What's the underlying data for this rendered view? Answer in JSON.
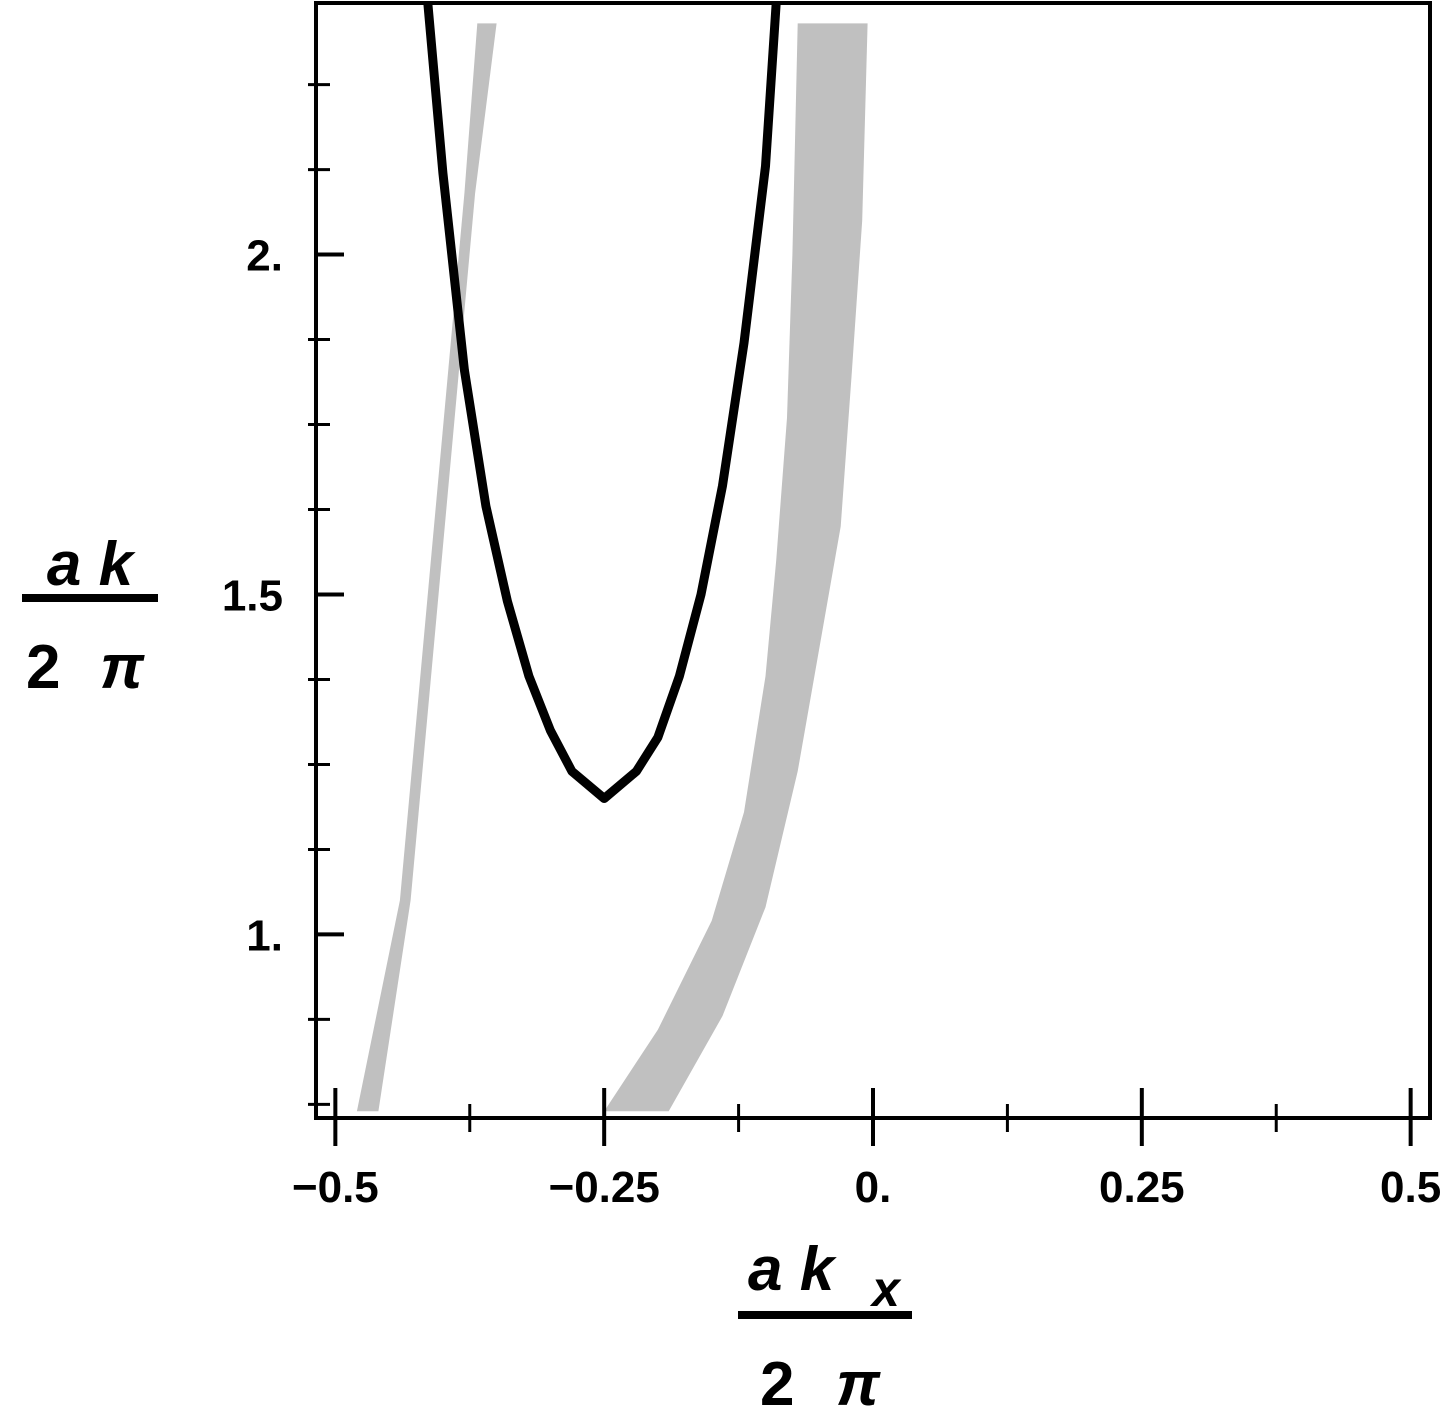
{
  "chart_data": {
    "type": "line",
    "xlabel": {
      "numerator": "a k",
      "subscript": "x",
      "denominator": "2",
      "pi": "π"
    },
    "ylabel": {
      "numerator": "a k",
      "denominator": "2",
      "pi": "π"
    },
    "xlim": [
      -0.518,
      0.518
    ],
    "ylim": [
      0.73,
      2.37
    ],
    "x_major_ticks": [
      -0.5,
      -0.25,
      0.0,
      0.25,
      0.5
    ],
    "x_tick_labels": [
      "−0.5",
      "−0.25",
      "0.",
      "0.25",
      "0.5"
    ],
    "x_minor_ticks": [
      -0.375,
      -0.125,
      0.125,
      0.375
    ],
    "y_major_ticks": [
      1.0,
      1.5,
      2.0
    ],
    "y_tick_labels": [
      "1.",
      "1.5",
      "2."
    ],
    "y_minor_ticks": [
      0.75,
      0.875,
      1.125,
      1.25,
      1.375,
      1.625,
      1.75,
      1.875,
      2.125,
      2.25
    ],
    "grid": false,
    "series": [
      {
        "type": "line",
        "color": "#000000",
        "points": [
          [
            -0.414,
            2.37
          ],
          [
            -0.4,
            2.12
          ],
          [
            -0.38,
            1.83
          ],
          [
            -0.36,
            1.63
          ],
          [
            -0.34,
            1.49
          ],
          [
            -0.32,
            1.38
          ],
          [
            -0.3,
            1.3
          ],
          [
            -0.28,
            1.24
          ],
          [
            -0.25,
            1.2
          ],
          [
            -0.22,
            1.24
          ],
          [
            -0.2,
            1.29
          ],
          [
            -0.18,
            1.38
          ],
          [
            -0.16,
            1.5
          ],
          [
            -0.14,
            1.66
          ],
          [
            -0.12,
            1.87
          ],
          [
            -0.1,
            2.13
          ],
          [
            -0.09,
            2.37
          ]
        ]
      },
      {
        "type": "band",
        "color": "#c0c0c0",
        "left_edge": [
          [
            -0.48,
            0.74
          ],
          [
            -0.44,
            1.05
          ],
          [
            -0.41,
            1.57
          ],
          [
            -0.38,
            2.09
          ],
          [
            -0.368,
            2.34
          ]
        ],
        "right_edge": [
          [
            -0.46,
            0.74
          ],
          [
            -0.43,
            1.05
          ],
          [
            -0.4,
            1.57
          ],
          [
            -0.37,
            2.09
          ],
          [
            -0.35,
            2.34
          ]
        ]
      },
      {
        "type": "band",
        "color": "#c0c0c0",
        "left_edge": [
          [
            -0.25,
            0.74
          ],
          [
            -0.2,
            0.86
          ],
          [
            -0.15,
            1.02
          ],
          [
            -0.12,
            1.18
          ],
          [
            -0.1,
            1.38
          ],
          [
            -0.09,
            1.55
          ],
          [
            -0.08,
            1.76
          ],
          [
            -0.075,
            2.0
          ],
          [
            -0.07,
            2.34
          ]
        ],
        "right_edge": [
          [
            -0.19,
            0.74
          ],
          [
            -0.14,
            0.88
          ],
          [
            -0.1,
            1.04
          ],
          [
            -0.07,
            1.24
          ],
          [
            -0.05,
            1.42
          ],
          [
            -0.03,
            1.6
          ],
          [
            -0.02,
            1.82
          ],
          [
            -0.01,
            2.05
          ],
          [
            -0.005,
            2.34
          ]
        ]
      }
    ]
  }
}
